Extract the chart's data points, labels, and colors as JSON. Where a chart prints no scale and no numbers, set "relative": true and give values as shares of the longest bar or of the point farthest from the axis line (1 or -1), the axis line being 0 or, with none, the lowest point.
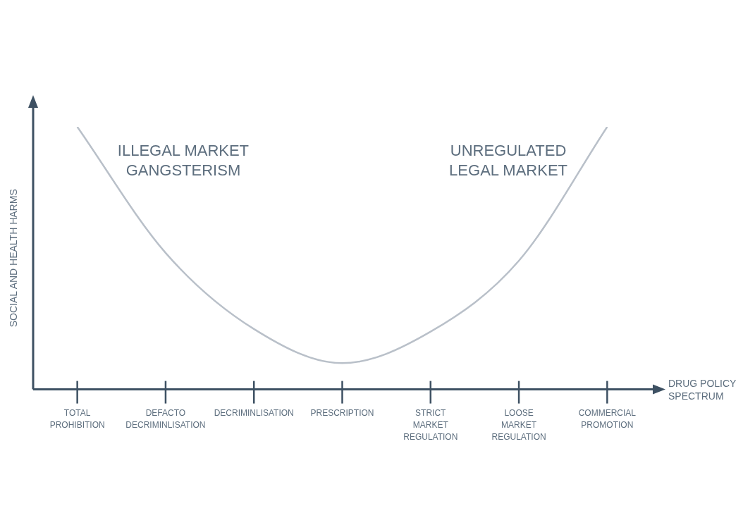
{
  "chart_data": {
    "type": "line",
    "relative": true,
    "categories": [
      "TOTAL PROHIBITION",
      "DEFACTO DECRIMINLISATION",
      "DECRIMINLISATION",
      "PRESCRIPTION",
      "STRICT MARKET REGULATION",
      "LOOSE MARKET REGULATION",
      "COMMERCIAL PROMOTION"
    ],
    "series": [
      {
        "color": "#b9c0c9",
        "values": [
          1,
          0.52,
          0.23,
          0.1,
          0.22,
          0.49,
          1
        ]
      }
    ],
    "xlabel": "DRUG POLICY SPECTRUM",
    "ylabel": "SOCIAL AND HEALTH HARMS",
    "annotations": [
      "ILLEGAL MARKET GANGSTERISM",
      "UNREGULATED LEGAL MARKET"
    ],
    "marker": "none",
    "grid": false,
    "legend": false
  }
}
